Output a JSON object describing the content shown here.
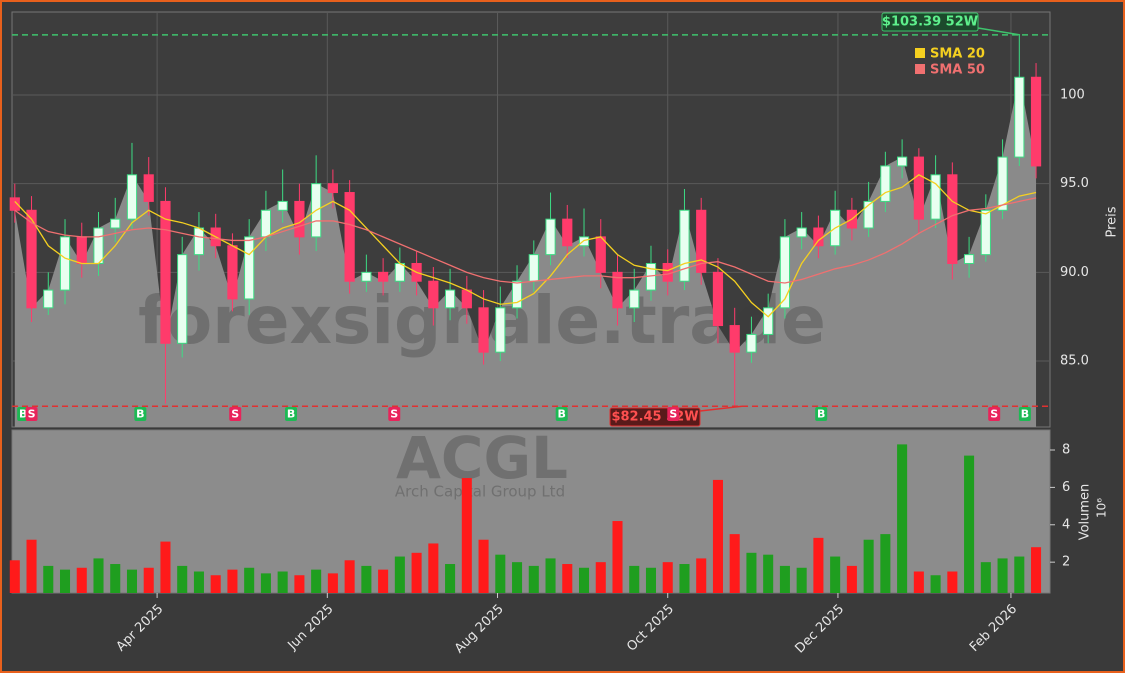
{
  "chart_data": [
    {
      "type": "candlestick",
      "x": [
        4,
        10,
        16,
        22,
        28,
        34,
        40,
        46,
        52,
        58,
        64,
        70,
        76,
        82,
        88,
        94,
        100,
        106,
        112,
        118,
        124,
        130,
        136,
        142,
        148,
        154,
        160,
        166,
        172,
        178,
        184,
        190,
        196,
        202,
        208,
        214,
        220,
        226,
        232,
        238,
        244,
        250,
        256,
        262,
        268,
        274,
        280,
        286,
        292,
        298,
        304,
        310,
        316,
        322,
        328,
        334,
        340,
        346,
        352,
        358,
        364,
        370
      ],
      "open": [
        94.2,
        93.5,
        88,
        89,
        92,
        90.5,
        92.5,
        93,
        95.5,
        94,
        86,
        91,
        92.5,
        91.5,
        88.5,
        92,
        93.5,
        94,
        92,
        95,
        94.5,
        89.5,
        90,
        89.5,
        90.5,
        89.5,
        88,
        89,
        88,
        85.5,
        88,
        89.5,
        91,
        93,
        91.5,
        92,
        90,
        88,
        89,
        90.5,
        89.5,
        93.5,
        90,
        87,
        85.5,
        86.5,
        88,
        92,
        92.5,
        91.5,
        93.5,
        92.5,
        94,
        96,
        96.5,
        93,
        95.5,
        90.5,
        91,
        93.5,
        96.5,
        101
      ],
      "high": [
        95,
        94.3,
        90,
        93,
        92.8,
        93.4,
        94.2,
        97.3,
        96.5,
        94.8,
        92,
        93.4,
        93.3,
        92.2,
        93,
        94.6,
        95.8,
        95,
        96.6,
        95.8,
        95.2,
        91,
        90.8,
        91.4,
        91.2,
        90.3,
        90.2,
        89.8,
        89,
        89.2,
        90.4,
        91.8,
        94.5,
        93.8,
        93.6,
        93,
        91,
        90.2,
        91.5,
        91.3,
        94.7,
        94.2,
        90.8,
        88,
        87.5,
        88.8,
        93,
        93.4,
        93.2,
        94.6,
        94.2,
        95.1,
        96.8,
        97.5,
        97,
        96.6,
        96.2,
        92,
        94.4,
        97.5,
        103.39,
        101.8
      ],
      "low": [
        92.8,
        87.2,
        87.6,
        88.2,
        89.7,
        89.8,
        91.7,
        92.4,
        93.2,
        82.6,
        85.2,
        90.1,
        90.8,
        87.8,
        87.6,
        91.2,
        92.8,
        91,
        91.2,
        93.6,
        88.8,
        88.9,
        88.7,
        88.9,
        88.7,
        87,
        87.3,
        87.1,
        84.8,
        85,
        87.4,
        88.9,
        90.4,
        90.8,
        90.9,
        89.1,
        87,
        87.2,
        88.4,
        88.7,
        89,
        89.3,
        86,
        82.45,
        84.9,
        86,
        87.4,
        91.3,
        90.8,
        91,
        91.8,
        92,
        93.4,
        95.3,
        92.2,
        92.5,
        89.6,
        89.7,
        90.6,
        93,
        96,
        95.3
      ],
      "close": [
        93.5,
        88,
        89,
        92,
        90.5,
        92.5,
        93,
        95.5,
        94,
        86,
        91,
        92.5,
        91.5,
        88.5,
        92,
        93.5,
        94,
        92,
        95,
        94.5,
        89.5,
        90,
        89.5,
        90.5,
        89.5,
        88,
        89,
        88,
        85.5,
        88,
        89.5,
        91,
        93,
        91.5,
        92,
        90,
        88,
        89,
        90.5,
        89.5,
        93.5,
        90,
        87,
        85.5,
        86.5,
        88,
        92,
        92.5,
        91.5,
        93.5,
        92.5,
        94,
        96,
        96.5,
        93,
        95.5,
        90.5,
        91,
        93.5,
        96.5,
        101,
        96
      ],
      "series": [
        {
          "name": "SMA 20",
          "color": "#f5d020",
          "values": [
            94,
            93,
            91.5,
            90.8,
            90.5,
            90.5,
            91.5,
            92.8,
            93.5,
            93,
            92.8,
            92.5,
            92,
            91.5,
            91,
            92,
            92.5,
            92.8,
            93.5,
            94,
            93.5,
            92.5,
            91.5,
            90.5,
            90,
            89.7,
            89.4,
            89,
            88.5,
            88.2,
            88.3,
            88.8,
            89.8,
            91,
            91.8,
            92,
            91,
            90.4,
            90.2,
            90.1,
            90.5,
            90.7,
            90.3,
            89.5,
            88.3,
            87.5,
            88.5,
            90.5,
            91.8,
            92.5,
            93,
            93.8,
            94.5,
            94.8,
            95.5,
            95,
            94,
            93.5,
            93.3,
            93.8,
            94.3,
            94.5
          ]
        },
        {
          "name": "SMA 50",
          "color": "#f07070",
          "values": [
            93.5,
            92.8,
            92.3,
            92.1,
            92,
            92,
            92.2,
            92.4,
            92.5,
            92.4,
            92.2,
            92,
            91.9,
            91.8,
            91.8,
            92,
            92.3,
            92.6,
            92.9,
            92.9,
            92.7,
            92.4,
            92,
            91.6,
            91.2,
            90.8,
            90.4,
            90,
            89.7,
            89.5,
            89.4,
            89.5,
            89.6,
            89.7,
            89.8,
            89.8,
            89.7,
            89.7,
            89.8,
            89.9,
            90.2,
            90.5,
            90.6,
            90.3,
            89.9,
            89.5,
            89.4,
            89.6,
            89.9,
            90.2,
            90.4,
            90.7,
            91.1,
            91.6,
            92.2,
            92.7,
            93.2,
            93.5,
            93.6,
            93.8,
            94,
            94.2
          ]
        }
      ],
      "xlim": [
        3,
        375
      ],
      "ylim": [
        81.28,
        104.68
      ],
      "yticks": [
        {
          "value": 85,
          "label": "85.0"
        },
        {
          "value": 90,
          "label": "90.0"
        },
        {
          "value": 95,
          "label": "95.0"
        },
        100
      ],
      "y_label": "Preis",
      "grid": true,
      "high_52w": {
        "value": 103.39,
        "label": "$103.39 52W"
      },
      "low_52w": {
        "value": 82.45,
        "label": "$82.45 52W"
      },
      "signals": [
        {
          "x": 7,
          "label": "B"
        },
        {
          "x": 10,
          "label": "S"
        },
        {
          "x": 49,
          "label": "B"
        },
        {
          "x": 83,
          "label": "S"
        },
        {
          "x": 103,
          "label": "B"
        },
        {
          "x": 140,
          "label": "S"
        },
        {
          "x": 200,
          "label": "B"
        },
        {
          "x": 240,
          "label": "S"
        },
        {
          "x": 293,
          "label": "B"
        },
        {
          "x": 355,
          "label": "S"
        },
        {
          "x": 366,
          "label": "B"
        }
      ],
      "watermark": "forexsignale.trade",
      "up_color": "#3ddc84",
      "down_color": "#ff3b6b"
    },
    {
      "type": "bar",
      "values": [
        2.1,
        3.2,
        1.8,
        1.6,
        1.7,
        2.2,
        1.9,
        1.6,
        1.7,
        3.1,
        1.8,
        1.5,
        1.3,
        1.6,
        1.7,
        1.4,
        1.5,
        1.3,
        1.6,
        1.4,
        2.1,
        1.8,
        1.6,
        2.3,
        2.5,
        3.0,
        1.9,
        6.5,
        3.2,
        2.4,
        2.0,
        1.8,
        2.2,
        1.9,
        1.7,
        2.0,
        4.2,
        1.8,
        1.7,
        2.0,
        1.9,
        2.2,
        6.4,
        3.5,
        2.5,
        2.4,
        1.8,
        1.7,
        3.3,
        2.3,
        1.8,
        3.2,
        3.5,
        8.3,
        1.5,
        1.3,
        1.5,
        7.7,
        2.0,
        2.2,
        2.3,
        2.8
      ],
      "ylim": [
        0.35,
        9.07
      ],
      "yticks": [
        2,
        4,
        6,
        8
      ],
      "y_label": "Volumen",
      "y_unit": "10⁶",
      "xticks": [
        {
          "value": 55,
          "label": "Apr 2025"
        },
        {
          "value": 116,
          "label": "Jun 2025"
        },
        {
          "value": 177,
          "label": "Aug 2025"
        },
        {
          "value": 238,
          "label": "Oct 2025"
        },
        {
          "value": 299,
          "label": "Dec 2025"
        },
        {
          "value": 361,
          "label": "Feb 2026"
        }
      ],
      "symbol": "ACGL",
      "company": "Arch Capital Group Ltd",
      "up_color": "#1f9e1f",
      "down_color": "#ff1a1a"
    }
  ]
}
